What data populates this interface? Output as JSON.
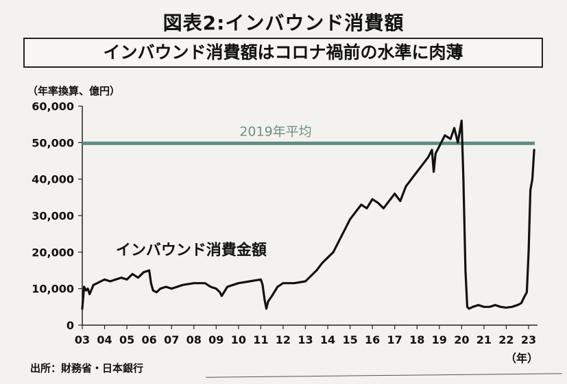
{
  "header": {
    "figure_title": "図表2:インバウンド消費額",
    "subtitle": "インバウンド消費額はコロナ禍前の水準に肉薄"
  },
  "source": "出所：財務省・日本銀行",
  "colors": {
    "series": "#111111",
    "reference": "#5f8d83",
    "axis": "#222222"
  },
  "chart_data": {
    "type": "line",
    "title": "インバウンド消費額はコロナ禍前の水準に肉薄",
    "ylabel": "（年率換算、億円）",
    "xlabel": "（年）",
    "ylim": [
      0,
      60000
    ],
    "xlim": [
      2003,
      2023.4
    ],
    "yticks": [
      0,
      10000,
      20000,
      30000,
      40000,
      50000,
      60000
    ],
    "ytick_labels": [
      "0",
      "10,000",
      "20,000",
      "30,000",
      "40,000",
      "50,000",
      "60,000"
    ],
    "xticks": [
      2003,
      2004,
      2005,
      2006,
      2007,
      2008,
      2009,
      2010,
      2011,
      2012,
      2013,
      2014,
      2015,
      2016,
      2017,
      2018,
      2019,
      2020,
      2021,
      2022,
      2023
    ],
    "xtick_labels": [
      "03",
      "04",
      "05",
      "06",
      "07",
      "08",
      "09",
      "10",
      "11",
      "12",
      "13",
      "14",
      "15",
      "16",
      "17",
      "18",
      "19",
      "20",
      "21",
      "22",
      "23"
    ],
    "reference_line": {
      "label": "2019年平均",
      "value": 49800
    },
    "series": [
      {
        "name": "インバウンド消費金額",
        "x": [
          2003.0,
          2003.08,
          2003.17,
          2003.25,
          2003.33,
          2003.5,
          2003.67,
          2003.83,
          2004.0,
          2004.25,
          2004.5,
          2004.75,
          2005.0,
          2005.25,
          2005.5,
          2005.75,
          2006.0,
          2006.08,
          2006.17,
          2006.33,
          2006.5,
          2006.75,
          2007.0,
          2007.5,
          2008.0,
          2008.5,
          2008.75,
          2009.0,
          2009.17,
          2009.25,
          2009.5,
          2009.75,
          2010.0,
          2010.5,
          2011.0,
          2011.08,
          2011.17,
          2011.25,
          2011.33,
          2011.5,
          2011.75,
          2012.0,
          2012.5,
          2013.0,
          2013.25,
          2013.5,
          2013.75,
          2014.0,
          2014.25,
          2014.5,
          2014.75,
          2015.0,
          2015.25,
          2015.5,
          2015.75,
          2016.0,
          2016.25,
          2016.5,
          2016.75,
          2017.0,
          2017.25,
          2017.5,
          2017.75,
          2018.0,
          2018.25,
          2018.5,
          2018.67,
          2018.75,
          2018.83,
          2019.0,
          2019.25,
          2019.5,
          2019.67,
          2019.83,
          2020.0,
          2020.08,
          2020.17,
          2020.25,
          2020.33,
          2020.5,
          2020.75,
          2021.0,
          2021.25,
          2021.5,
          2021.75,
          2022.0,
          2022.25,
          2022.5,
          2022.67,
          2022.75,
          2022.83,
          2022.92,
          2023.0,
          2023.08,
          2023.17,
          2023.25
        ],
        "values": [
          4500,
          10500,
          9500,
          10000,
          8500,
          11000,
          11500,
          12000,
          12500,
          12000,
          12500,
          13000,
          12500,
          14000,
          13000,
          14500,
          15000,
          11500,
          9500,
          9000,
          10000,
          10500,
          10000,
          11000,
          11500,
          11500,
          10500,
          10000,
          9000,
          8000,
          10500,
          11000,
          11500,
          12000,
          12500,
          11000,
          7000,
          4500,
          6500,
          8000,
          10500,
          11500,
          11500,
          12000,
          13500,
          15000,
          17000,
          18500,
          20000,
          23000,
          26000,
          29000,
          31000,
          33000,
          32000,
          34500,
          33500,
          32000,
          34000,
          36000,
          34000,
          38000,
          40000,
          42000,
          44000,
          46000,
          48000,
          42000,
          47000,
          49000,
          52000,
          51000,
          54000,
          50000,
          56000,
          40000,
          15000,
          5000,
          4500,
          5000,
          5500,
          5000,
          5000,
          5500,
          5000,
          4800,
          5000,
          5500,
          6000,
          7000,
          8000,
          9000,
          20000,
          37000,
          40000,
          48000
        ]
      }
    ],
    "annotations": [
      {
        "text": "インバウンド消費金額",
        "x": 2004.5,
        "y": 20000
      }
    ]
  }
}
